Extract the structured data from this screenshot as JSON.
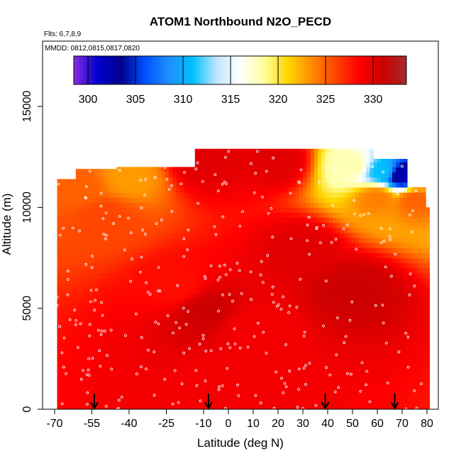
{
  "chart_data": {
    "type": "heatmap",
    "title": "ATOM1 Northbound N2O_PECD",
    "subtitle_flights": "Flts: 6,7,8,9",
    "subtitle_dates": "MMDD: 0812,0815,0817,0820",
    "xlabel": "Latitude (deg N)",
    "ylabel": "Altitude (m)",
    "xlim": [
      -70,
      80
    ],
    "ylim": [
      0,
      17500
    ],
    "x_ticks": [
      -70,
      -55,
      -40,
      -25,
      -10,
      0,
      10,
      20,
      30,
      40,
      50,
      60,
      70,
      80
    ],
    "x_tick_labels": [
      "-70",
      "-55",
      "-40",
      "-25",
      "-10",
      "0",
      "10",
      "20",
      "30",
      "40",
      "50",
      "60",
      "70",
      "80"
    ],
    "y_ticks": [
      0,
      5000,
      10000,
      15000
    ],
    "y_tick_labels": [
      "0",
      "5000",
      "10000",
      "15000"
    ],
    "colorbar": {
      "range": [
        298.5,
        333.5
      ],
      "ticks": [
        300,
        305,
        310,
        315,
        320,
        325,
        330
      ],
      "tick_labels": [
        "300",
        "305",
        "310",
        "315",
        "320",
        "325",
        "330"
      ],
      "colors": [
        "#8a2be2",
        "#0000cd",
        "#00008b",
        "#0050ff",
        "#1e90ff",
        "#00bfff",
        "#bfe6ff",
        "#ffffff",
        "#ffffa0",
        "#ffd700",
        "#ff8c00",
        "#ff4500",
        "#ff0000",
        "#cd0000",
        "#a52a2a"
      ]
    },
    "profile_arrows_latitude": [
      -54,
      -8,
      39,
      67
    ],
    "data_coverage_top_altitude": [
      {
        "lat": -68,
        "alt": 11400
      },
      {
        "lat": -62,
        "alt": 11900
      },
      {
        "lat": -45,
        "alt": 12000
      },
      {
        "lat": -31,
        "alt": 12000
      },
      {
        "lat": -14,
        "alt": 12900
      },
      {
        "lat": 38,
        "alt": 12900
      },
      {
        "lat": 58,
        "alt": 12400
      },
      {
        "lat": 72,
        "alt": 11000
      },
      {
        "lat": 79,
        "alt": 10000
      }
    ],
    "field_values": [
      {
        "lat": -60,
        "alt": 11000,
        "value": 325
      },
      {
        "lat": -40,
        "alt": 11500,
        "value": 323
      },
      {
        "lat": -50,
        "alt": 9500,
        "value": 326
      },
      {
        "lat": -10,
        "alt": 12300,
        "value": 330
      },
      {
        "lat": 20,
        "alt": 12300,
        "value": 330
      },
      {
        "lat": 50,
        "alt": 12100,
        "value": 318
      },
      {
        "lat": 62,
        "alt": 11800,
        "value": 311
      },
      {
        "lat": 70,
        "alt": 11600,
        "value": 302
      },
      {
        "lat": 60,
        "alt": 10500,
        "value": 324
      },
      {
        "lat": 75,
        "alt": 10400,
        "value": 325
      },
      {
        "lat": -20,
        "alt": 6000,
        "value": 328
      },
      {
        "lat": -10,
        "alt": 5000,
        "value": 331
      },
      {
        "lat": 10,
        "alt": 4000,
        "value": 329
      },
      {
        "lat": 30,
        "alt": 8000,
        "value": 330
      },
      {
        "lat": 50,
        "alt": 6000,
        "value": 331
      },
      {
        "lat": 0,
        "alt": 1000,
        "value": 329
      }
    ]
  }
}
